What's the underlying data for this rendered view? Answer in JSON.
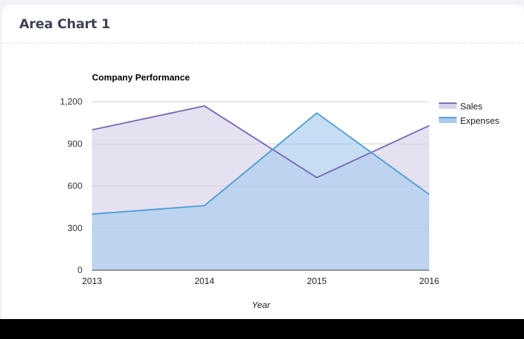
{
  "card": {
    "title": "Area Chart 1"
  },
  "chart_data": {
    "type": "area",
    "title": "Company Performance",
    "xlabel": "Year",
    "ylabel": "",
    "categories": [
      "2013",
      "2014",
      "2015",
      "2016"
    ],
    "ylim": [
      0,
      1200
    ],
    "yticks": [
      0,
      300,
      600,
      900,
      1200
    ],
    "ytick_labels": [
      "0",
      "300",
      "600",
      "900",
      "1,200"
    ],
    "grid": true,
    "legend": "right",
    "series": [
      {
        "name": "Sales",
        "values": [
          1000,
          1170,
          660,
          1030
        ],
        "color": "#7b68b8",
        "fill": "#d8d1ea"
      },
      {
        "name": "Expenses",
        "values": [
          400,
          460,
          1120,
          540
        ],
        "color": "#4a9fd8",
        "fill": "#a9cbee"
      }
    ]
  }
}
